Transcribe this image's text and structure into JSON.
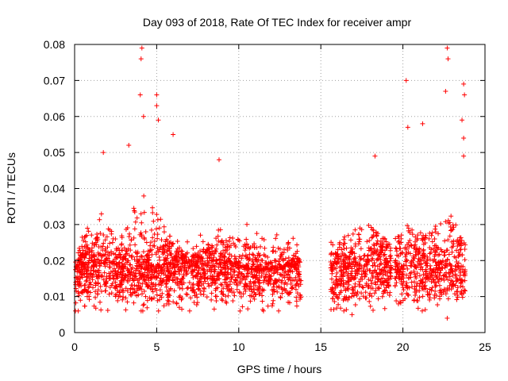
{
  "chart_data": {
    "type": "scatter",
    "title": "Day 093 of 2018, Rate Of TEC Index for receiver ampr",
    "xlabel": "GPS time / hours",
    "ylabel": "ROTI / TECUs",
    "xlim": [
      0,
      25
    ],
    "ylim": [
      0,
      0.08
    ],
    "x_ticks": [
      0,
      5,
      10,
      15,
      20,
      25
    ],
    "x_tick_labels": [
      "0",
      "5",
      "10",
      "15",
      "20",
      "25"
    ],
    "y_ticks": [
      0,
      0.01,
      0.02,
      0.03,
      0.04,
      0.05,
      0.06,
      0.07,
      0.08
    ],
    "y_tick_labels": [
      "0",
      "0.01",
      "0.02",
      "0.03",
      "0.04",
      "0.05",
      "0.06",
      "0.07",
      "0.08"
    ],
    "grid": true,
    "marker": "+",
    "series_color": "#ff0000",
    "envelope": [
      {
        "x": 0.0,
        "y": 0.016
      },
      {
        "x": 0.5,
        "y": 0.03
      },
      {
        "x": 1.0,
        "y": 0.022
      },
      {
        "x": 1.7,
        "y": 0.035
      },
      {
        "x": 2.5,
        "y": 0.025
      },
      {
        "x": 3.3,
        "y": 0.032
      },
      {
        "x": 4.0,
        "y": 0.04
      },
      {
        "x": 5.0,
        "y": 0.034
      },
      {
        "x": 6.0,
        "y": 0.026
      },
      {
        "x": 7.0,
        "y": 0.02
      },
      {
        "x": 8.0,
        "y": 0.024
      },
      {
        "x": 8.8,
        "y": 0.03
      },
      {
        "x": 9.5,
        "y": 0.02
      },
      {
        "x": 11.0,
        "y": 0.017
      },
      {
        "x": 12.5,
        "y": 0.018
      },
      {
        "x": 13.8,
        "y": 0.022
      },
      {
        "x": 15.5,
        "y": 0.022
      },
      {
        "x": 16.5,
        "y": 0.028
      },
      {
        "x": 18.0,
        "y": 0.03
      },
      {
        "x": 19.3,
        "y": 0.024
      },
      {
        "x": 20.2,
        "y": 0.03
      },
      {
        "x": 21.5,
        "y": 0.027
      },
      {
        "x": 22.8,
        "y": 0.034
      },
      {
        "x": 23.8,
        "y": 0.025
      }
    ],
    "data_gaps_hours": [
      [
        13.8,
        15.6
      ],
      [
        19.3,
        19.5
      ]
    ],
    "notable_points": [
      {
        "x": 4.1,
        "y": 0.079
      },
      {
        "x": 4.05,
        "y": 0.076
      },
      {
        "x": 4.0,
        "y": 0.066
      },
      {
        "x": 4.2,
        "y": 0.06
      },
      {
        "x": 5.0,
        "y": 0.066
      },
      {
        "x": 5.0,
        "y": 0.063
      },
      {
        "x": 5.1,
        "y": 0.059
      },
      {
        "x": 6.0,
        "y": 0.055
      },
      {
        "x": 3.3,
        "y": 0.052
      },
      {
        "x": 1.75,
        "y": 0.05
      },
      {
        "x": 8.8,
        "y": 0.048
      },
      {
        "x": 18.3,
        "y": 0.049
      },
      {
        "x": 20.2,
        "y": 0.07
      },
      {
        "x": 20.3,
        "y": 0.057
      },
      {
        "x": 21.2,
        "y": 0.058
      },
      {
        "x": 22.7,
        "y": 0.079
      },
      {
        "x": 22.75,
        "y": 0.076
      },
      {
        "x": 22.6,
        "y": 0.067
      },
      {
        "x": 23.7,
        "y": 0.069
      },
      {
        "x": 23.75,
        "y": 0.066
      },
      {
        "x": 23.6,
        "y": 0.059
      },
      {
        "x": 23.7,
        "y": 0.054
      },
      {
        "x": 23.7,
        "y": 0.049
      },
      {
        "x": 22.7,
        "y": 0.004
      },
      {
        "x": 16.9,
        "y": 0.005
      }
    ]
  }
}
